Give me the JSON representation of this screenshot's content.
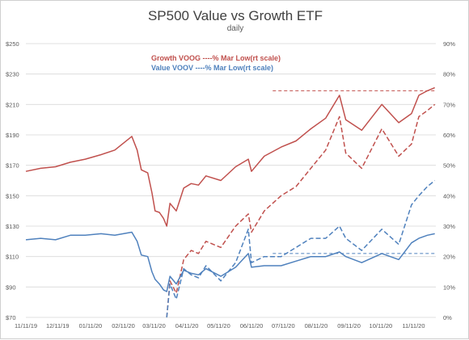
{
  "chart_data": {
    "type": "line",
    "title": "SP500 Value vs Growth ETF",
    "subtitle": "daily",
    "xlabel": "",
    "ylabel": "",
    "x_ticks": [
      "11/11/19",
      "12/11/19",
      "01/11/20",
      "02/11/20",
      "03/11/20",
      "04/11/20",
      "05/11/20",
      "06/11/20",
      "07/11/20",
      "08/11/20",
      "09/11/20",
      "10/11/20",
      "11/11/20"
    ],
    "ylim": [
      70,
      250
    ],
    "y_ticks": [
      70,
      90,
      110,
      130,
      150,
      170,
      190,
      210,
      230,
      250
    ],
    "y_tick_labels": [
      "$70",
      "$90",
      "$110",
      "$130",
      "$150",
      "$170",
      "$190",
      "$210",
      "$230",
      "$250"
    ],
    "y2lim": [
      0,
      90
    ],
    "y2_ticks": [
      0,
      10,
      20,
      30,
      40,
      50,
      60,
      70,
      80,
      90
    ],
    "y2_tick_labels": [
      "0%",
      "10%",
      "20%",
      "30%",
      "40%",
      "50%",
      "60%",
      "70%",
      "80%",
      "90%"
    ],
    "grid": "horizontal",
    "legend": [
      {
        "label": "Growth VOOG ----% Mar Low(rt scale)",
        "color": "#c0504d"
      },
      {
        "label": "Value VOOV  ----% Mar Low(rt scale)",
        "color": "#4f81bd"
      }
    ],
    "series": [
      {
        "name": "Growth VOOG",
        "axis": "left",
        "style": "solid",
        "color": "#c0504d",
        "points": [
          [
            "2019-11-11",
            166
          ],
          [
            "2019-11-25",
            168
          ],
          [
            "2019-12-09",
            169
          ],
          [
            "2019-12-23",
            172
          ],
          [
            "2020-01-06",
            174
          ],
          [
            "2020-01-21",
            177
          ],
          [
            "2020-02-03",
            180
          ],
          [
            "2020-02-19",
            189
          ],
          [
            "2020-02-24",
            180
          ],
          [
            "2020-02-28",
            167
          ],
          [
            "2020-03-05",
            165
          ],
          [
            "2020-03-09",
            152
          ],
          [
            "2020-03-12",
            140
          ],
          [
            "2020-03-16",
            139
          ],
          [
            "2020-03-20",
            135
          ],
          [
            "2020-03-23",
            130
          ],
          [
            "2020-03-26",
            145
          ],
          [
            "2020-04-01",
            140
          ],
          [
            "2020-04-08",
            155
          ],
          [
            "2020-04-15",
            158
          ],
          [
            "2020-04-22",
            157
          ],
          [
            "2020-04-29",
            163
          ],
          [
            "2020-05-13",
            160
          ],
          [
            "2020-05-27",
            169
          ],
          [
            "2020-06-08",
            174
          ],
          [
            "2020-06-11",
            166
          ],
          [
            "2020-06-23",
            176
          ],
          [
            "2020-07-09",
            182
          ],
          [
            "2020-07-23",
            186
          ],
          [
            "2020-08-06",
            194
          ],
          [
            "2020-08-20",
            201
          ],
          [
            "2020-09-02",
            216
          ],
          [
            "2020-09-08",
            200
          ],
          [
            "2020-09-23",
            193
          ],
          [
            "2020-10-12",
            210
          ],
          [
            "2020-10-28",
            198
          ],
          [
            "2020-11-09",
            204
          ],
          [
            "2020-11-16",
            216
          ],
          [
            "2020-11-24",
            219
          ],
          [
            "2020-12-01",
            221
          ]
        ]
      },
      {
        "name": "Growth VOOG % Mar Low",
        "axis": "right",
        "style": "dashed",
        "color": "#c0504d",
        "points": [
          [
            "2020-03-23",
            0
          ],
          [
            "2020-03-26",
            12
          ],
          [
            "2020-04-01",
            8
          ],
          [
            "2020-04-08",
            19
          ],
          [
            "2020-04-15",
            22
          ],
          [
            "2020-04-22",
            21
          ],
          [
            "2020-04-29",
            25
          ],
          [
            "2020-05-13",
            23
          ],
          [
            "2020-05-27",
            30
          ],
          [
            "2020-06-08",
            34
          ],
          [
            "2020-06-11",
            28
          ],
          [
            "2020-06-23",
            35
          ],
          [
            "2020-07-09",
            40
          ],
          [
            "2020-07-23",
            43
          ],
          [
            "2020-08-06",
            49
          ],
          [
            "2020-08-20",
            55
          ],
          [
            "2020-09-02",
            66
          ],
          [
            "2020-09-08",
            54
          ],
          [
            "2020-09-23",
            49
          ],
          [
            "2020-10-12",
            62
          ],
          [
            "2020-10-28",
            53
          ],
          [
            "2020-11-09",
            57
          ],
          [
            "2020-11-16",
            66
          ],
          [
            "2020-11-24",
            68
          ],
          [
            "2020-12-01",
            70
          ]
        ]
      },
      {
        "name": "Value VOOV",
        "axis": "left",
        "style": "solid",
        "color": "#4f81bd",
        "points": [
          [
            "2019-11-11",
            121
          ],
          [
            "2019-11-25",
            122
          ],
          [
            "2019-12-09",
            121
          ],
          [
            "2019-12-23",
            124
          ],
          [
            "2020-01-06",
            124
          ],
          [
            "2020-01-21",
            125
          ],
          [
            "2020-02-03",
            124
          ],
          [
            "2020-02-19",
            126
          ],
          [
            "2020-02-24",
            120
          ],
          [
            "2020-02-28",
            111
          ],
          [
            "2020-03-05",
            110
          ],
          [
            "2020-03-09",
            100
          ],
          [
            "2020-03-12",
            95
          ],
          [
            "2020-03-16",
            92
          ],
          [
            "2020-03-20",
            88
          ],
          [
            "2020-03-23",
            87
          ],
          [
            "2020-03-26",
            97
          ],
          [
            "2020-04-01",
            92
          ],
          [
            "2020-04-08",
            101
          ],
          [
            "2020-04-15",
            99
          ],
          [
            "2020-04-22",
            98
          ],
          [
            "2020-04-29",
            102
          ],
          [
            "2020-05-13",
            97
          ],
          [
            "2020-05-27",
            103
          ],
          [
            "2020-06-08",
            112
          ],
          [
            "2020-06-11",
            103
          ],
          [
            "2020-06-23",
            104
          ],
          [
            "2020-07-09",
            104
          ],
          [
            "2020-07-23",
            107
          ],
          [
            "2020-08-06",
            110
          ],
          [
            "2020-08-20",
            110
          ],
          [
            "2020-09-02",
            113
          ],
          [
            "2020-09-08",
            110
          ],
          [
            "2020-09-23",
            106
          ],
          [
            "2020-10-12",
            112
          ],
          [
            "2020-10-28",
            108
          ],
          [
            "2020-11-09",
            119
          ],
          [
            "2020-11-16",
            122
          ],
          [
            "2020-11-24",
            124
          ],
          [
            "2020-12-01",
            125
          ]
        ]
      },
      {
        "name": "Value VOOV % Mar Low",
        "axis": "right",
        "style": "dashed",
        "color": "#4f81bd",
        "points": [
          [
            "2020-03-23",
            0
          ],
          [
            "2020-03-26",
            11
          ],
          [
            "2020-04-01",
            6
          ],
          [
            "2020-04-08",
            16
          ],
          [
            "2020-04-15",
            14
          ],
          [
            "2020-04-22",
            13
          ],
          [
            "2020-04-29",
            17
          ],
          [
            "2020-05-13",
            12
          ],
          [
            "2020-05-27",
            18
          ],
          [
            "2020-06-08",
            29
          ],
          [
            "2020-06-11",
            18
          ],
          [
            "2020-06-23",
            20
          ],
          [
            "2020-07-09",
            20
          ],
          [
            "2020-07-23",
            23
          ],
          [
            "2020-08-06",
            26
          ],
          [
            "2020-08-20",
            26
          ],
          [
            "2020-09-02",
            30
          ],
          [
            "2020-09-08",
            26
          ],
          [
            "2020-09-23",
            22
          ],
          [
            "2020-10-12",
            29
          ],
          [
            "2020-10-28",
            24
          ],
          [
            "2020-11-09",
            37
          ],
          [
            "2020-11-16",
            40
          ],
          [
            "2020-11-24",
            43
          ],
          [
            "2020-12-01",
            45
          ]
        ]
      }
    ],
    "reference_lines": [
      {
        "color": "#c0504d",
        "axis": "left",
        "y": 219,
        "x_start": "2020-07-01",
        "x_end": "2020-12-01"
      },
      {
        "color": "#4f81bd",
        "axis": "left",
        "y": 112,
        "x_start": "2020-07-01",
        "x_end": "2020-12-01"
      }
    ]
  }
}
